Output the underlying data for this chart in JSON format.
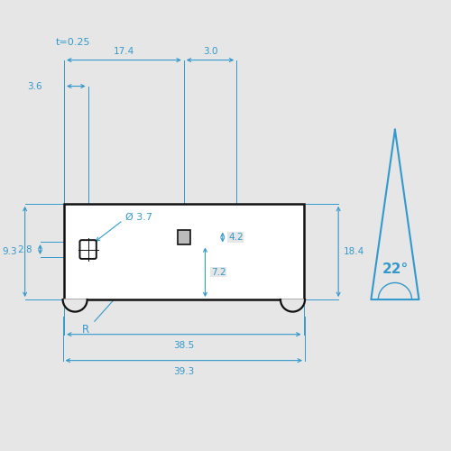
{
  "bg_color": "#e6e6e6",
  "white": "#ffffff",
  "blue": "#3399cc",
  "dark": "#111111",
  "t_label": "t=0.25",
  "dim_17_4": "17.4",
  "dim_3_0": "3.0",
  "dim_3_6": "3.6",
  "dim_2_8": "2.8",
  "dim_9_3": "9.3",
  "dim_18_4": "18.4",
  "dim_38_5": "38.5",
  "dim_39_3": "39.3",
  "dim_phi_3_7": "Ø 3.7",
  "dim_7_2": "7.2",
  "dim_4_2": "4.2",
  "dim_22": "22°",
  "label_R": "R",
  "figsize": [
    5.0,
    5.0
  ],
  "dpi": 100
}
